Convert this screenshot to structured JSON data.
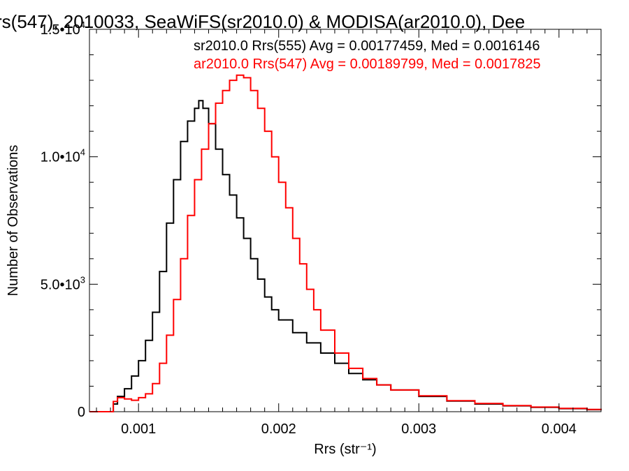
{
  "chart_data": {
    "type": "line",
    "title": "rs(547), 2010033, SeaWiFS(sr2010.0) & MODISA(ar2010.0), Dee",
    "xlabel": "Rrs (str⁻¹)",
    "ylabel": "Number of Observations",
    "xlim": [
      0.00065,
      0.0043
    ],
    "ylim": [
      0,
      15000
    ],
    "x_ticks": [
      {
        "value": 0.001,
        "label": "0.001"
      },
      {
        "value": 0.002,
        "label": "0.002"
      },
      {
        "value": 0.003,
        "label": "0.003"
      },
      {
        "value": 0.004,
        "label": "0.004"
      }
    ],
    "y_ticks": [
      {
        "value": 0,
        "label": "0",
        "exp": ""
      },
      {
        "value": 5000,
        "label": "5.0•10",
        "exp": "3"
      },
      {
        "value": 10000,
        "label": "1.0•10",
        "exp": "4"
      },
      {
        "value": 15000,
        "label": "1.5•10",
        "exp": "4"
      }
    ],
    "grid": false,
    "legend_position": "top-right",
    "series": [
      {
        "name": "sr2010.0 Rrs(555) Avg = 0.00177459, Med = 0.0016146",
        "color": "#000000",
        "points": [
          [
            0.00065,
            0
          ],
          [
            0.0008,
            0
          ],
          [
            0.00082,
            300
          ],
          [
            0.00085,
            600
          ],
          [
            0.0009,
            900
          ],
          [
            0.00095,
            1400
          ],
          [
            0.001,
            2000
          ],
          [
            0.00105,
            2800
          ],
          [
            0.0011,
            3900
          ],
          [
            0.00115,
            5500
          ],
          [
            0.0012,
            7400
          ],
          [
            0.00125,
            9100
          ],
          [
            0.0013,
            10600
          ],
          [
            0.00135,
            11400
          ],
          [
            0.0014,
            11900
          ],
          [
            0.00143,
            12200
          ],
          [
            0.00146,
            11900
          ],
          [
            0.0015,
            11300
          ],
          [
            0.00155,
            10300
          ],
          [
            0.0016,
            9300
          ],
          [
            0.00165,
            8500
          ],
          [
            0.0017,
            7600
          ],
          [
            0.00175,
            6800
          ],
          [
            0.0018,
            6000
          ],
          [
            0.00185,
            5200
          ],
          [
            0.0019,
            4500
          ],
          [
            0.00195,
            4000
          ],
          [
            0.002,
            3600
          ],
          [
            0.0021,
            3100
          ],
          [
            0.0022,
            2700
          ],
          [
            0.0023,
            2300
          ],
          [
            0.0024,
            1900
          ],
          [
            0.0025,
            1500
          ],
          [
            0.0026,
            1250
          ],
          [
            0.0027,
            1050
          ],
          [
            0.0028,
            850
          ],
          [
            0.003,
            600
          ],
          [
            0.0032,
            420
          ],
          [
            0.0034,
            300
          ],
          [
            0.0036,
            230
          ],
          [
            0.0038,
            170
          ],
          [
            0.004,
            120
          ],
          [
            0.0042,
            80
          ],
          [
            0.0043,
            60
          ]
        ]
      },
      {
        "name": "ar2010.0 Rrs(547) Avg = 0.00189799, Med = 0.0017825",
        "color": "#ff0000",
        "points": [
          [
            0.00065,
            0
          ],
          [
            0.0008,
            0
          ],
          [
            0.00082,
            400
          ],
          [
            0.00085,
            550
          ],
          [
            0.0009,
            500
          ],
          [
            0.00095,
            450
          ],
          [
            0.001,
            550
          ],
          [
            0.00105,
            700
          ],
          [
            0.0011,
            1100
          ],
          [
            0.00115,
            1900
          ],
          [
            0.0012,
            3000
          ],
          [
            0.00125,
            4400
          ],
          [
            0.0013,
            6000
          ],
          [
            0.00135,
            7700
          ],
          [
            0.0014,
            9100
          ],
          [
            0.00145,
            10300
          ],
          [
            0.0015,
            11300
          ],
          [
            0.00155,
            12100
          ],
          [
            0.0016,
            12600
          ],
          [
            0.00165,
            13000
          ],
          [
            0.0017,
            13200
          ],
          [
            0.00175,
            13100
          ],
          [
            0.0018,
            12600
          ],
          [
            0.00185,
            11900
          ],
          [
            0.0019,
            11000
          ],
          [
            0.00195,
            10000
          ],
          [
            0.002,
            9000
          ],
          [
            0.00205,
            8000
          ],
          [
            0.0021,
            6800
          ],
          [
            0.00215,
            5800
          ],
          [
            0.0022,
            4800
          ],
          [
            0.00225,
            4000
          ],
          [
            0.0023,
            3200
          ],
          [
            0.0024,
            2300
          ],
          [
            0.0025,
            1700
          ],
          [
            0.0026,
            1300
          ],
          [
            0.0027,
            1050
          ],
          [
            0.0028,
            850
          ],
          [
            0.003,
            620
          ],
          [
            0.0032,
            430
          ],
          [
            0.0034,
            320
          ],
          [
            0.0036,
            240
          ],
          [
            0.0038,
            180
          ],
          [
            0.004,
            130
          ],
          [
            0.0042,
            90
          ],
          [
            0.0043,
            70
          ]
        ]
      }
    ]
  }
}
